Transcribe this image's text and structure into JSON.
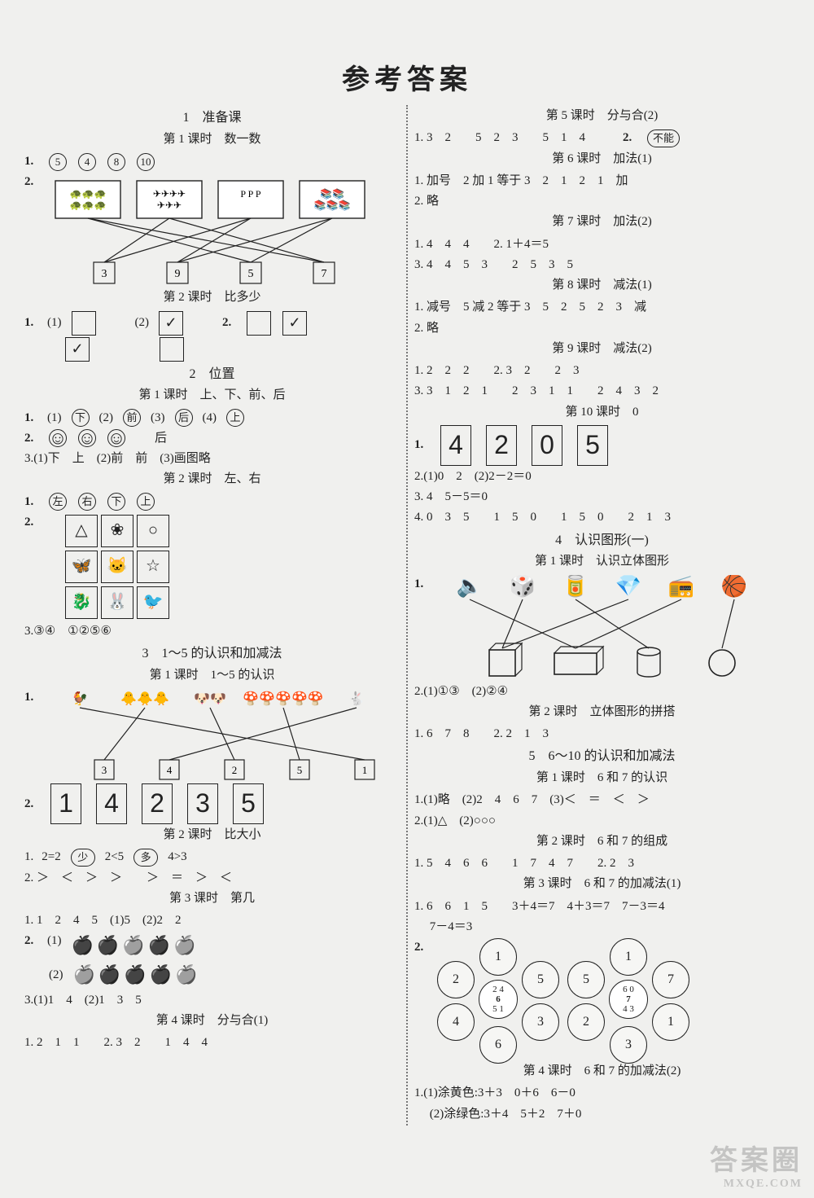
{
  "title": "参考答案",
  "left": {
    "s1": {
      "title": "1　准备课",
      "sub1": "第 1 课时　数一数"
    },
    "q1_circles": [
      "5",
      "4",
      "8",
      "10"
    ],
    "match2": {
      "top_icons": [
        "🐢🐢🐢\n🐢🐢🐢",
        "✈✈✈✈\n✈✈✈",
        "P P P",
        "📚📚\n📚📚📚"
      ],
      "bottom_boxes": [
        "3",
        "9",
        "5",
        "7"
      ],
      "edges": [
        [
          0,
          2
        ],
        [
          0,
          3
        ],
        [
          1,
          3
        ],
        [
          1,
          0
        ],
        [
          2,
          0
        ],
        [
          2,
          1
        ],
        [
          3,
          1
        ],
        [
          3,
          2
        ]
      ],
      "line_color": "#222"
    },
    "sub2": "第 2 课时　比多少",
    "q1_pairs": {
      "set1": [
        [
          "",
          ""
        ],
        [
          "✓",
          ""
        ]
      ],
      "set2": [
        [
          "✓",
          ""
        ],
        [
          "",
          ""
        ]
      ]
    },
    "q2_pair": [
      "",
      "✓"
    ],
    "s2": {
      "title": "2　位置",
      "sub1": "第 1 课时　上、下、前、后"
    },
    "pos_q1": [
      [
        "(1)",
        "下"
      ],
      [
        "(2)",
        "前"
      ],
      [
        "(3)",
        "后"
      ],
      [
        "(4)",
        "上"
      ]
    ],
    "pos_q2_faces": [
      "☺",
      "☺",
      "☺"
    ],
    "pos_q2_tail": "后",
    "pos_q3": "3.(1)下　上　(2)前　前　(3)画图略",
    "pos_sub2": "第 2 课时　左、右",
    "lr_q1": [
      "左",
      "右",
      "下",
      "上"
    ],
    "lr_grid": [
      "△",
      "❀",
      "○",
      "🦋",
      "🐱",
      "☆",
      "🐉",
      "🐰",
      "🐦"
    ],
    "lr_q3": "3.③④　①②⑤⑥",
    "s3": {
      "title": "3　1～5 的认识和加减法",
      "sub1": "第 1 课时　1～5 的认识"
    },
    "m15": {
      "top_icons": [
        "🐓",
        "🐥🐥🐥",
        "🐶🐶",
        "🍄🍄🍄🍄🍄",
        "🐇"
      ],
      "bottom_boxes": [
        "3",
        "4",
        "2",
        "5",
        "1"
      ],
      "edges": [
        [
          0,
          4
        ],
        [
          1,
          0
        ],
        [
          2,
          2
        ],
        [
          3,
          3
        ],
        [
          4,
          1
        ]
      ],
      "line_color": "#222"
    },
    "digits_q2": [
      "1",
      "4",
      "2",
      "3",
      "5"
    ],
    "s3_sub2": "第 2 课时　比大小",
    "cmp_q1": [
      "1.",
      "2=2",
      "少",
      "2<5",
      "多",
      "4>3"
    ],
    "cmp_q2": "2. ＞　＜　＞　＞　　＞　＝　＞　＜",
    "s3_sub3": "第 3 课时　第几",
    "dj_q1": "1. 1　2　4　5　(1)5　(2)2　2",
    "apples": {
      "r1": [
        "●",
        "●",
        "○",
        "●",
        "○"
      ],
      "r2": [
        "○",
        "●",
        "●",
        "●",
        "○"
      ]
    },
    "dj_q3": "3.(1)1　4　(2)1　3　5",
    "s3_sub4": "第 4 课时　分与合(1)",
    "fh_q1": "1. 2　1　1　　2. 3　2　　1　4　4"
  },
  "right": {
    "sub5": "第 5 课时　分与合(2)",
    "l5_q1": "1. 3　2　　5　2　3　　5　1　4",
    "l5_q2_label": "2.",
    "l5_q2_oval": "不能",
    "sub6": "第 6 课时　加法(1)",
    "l6_q1": "1. 加号　2 加 1 等于 3　2　1　2　1　加",
    "l6_q2": "2. 略",
    "sub7": "第 7 课时　加法(2)",
    "l7_q1": "1. 4　4　4　　2. 1＋4＝5",
    "l7_q3": "3. 4　4　5　3　　2　5　3　5",
    "sub8": "第 8 课时　减法(1)",
    "l8_q1": "1. 减号　5 减 2 等于 3　5　2　5　2　3　减",
    "l8_q2": "2. 略",
    "sub9": "第 9 课时　减法(2)",
    "l9_q1": "1. 2　2　2　　2. 3　2　　2　3",
    "l9_q3": "3. 3　1　2　1　　2　3　1　1　　2　4　3　2",
    "sub10": "第 10 课时　0",
    "l10_q1_digits": [
      "4",
      "2",
      "0",
      "5"
    ],
    "l10_q2": "2.(1)0　2　(2)2－2＝0",
    "l10_q3": "3. 4　5－5＝0",
    "l10_q4": "4. 0　3　5　　1　5　0　　1　5　0　　2　1　3",
    "s4": {
      "title": "4　认识图形(一)",
      "sub1": "第 1 课时　认识立体图形"
    },
    "solid_match": {
      "top_icons": [
        "🔈",
        "🎲",
        "🥫",
        "💎",
        "📻",
        "🏀"
      ],
      "bottom_kind": [
        "cube",
        "cuboid",
        "cyl",
        "ball"
      ],
      "edges": [
        [
          0,
          1
        ],
        [
          1,
          0
        ],
        [
          2,
          2
        ],
        [
          3,
          0
        ],
        [
          4,
          1
        ],
        [
          5,
          3
        ]
      ],
      "line_color": "#222"
    },
    "solid_q2": "2.(1)①③　(2)②④",
    "s4_sub2": "第 2 课时　立体图形的拼搭",
    "pz_q1": "1. 6　7　8　　2. 2　1　3",
    "s5": {
      "title": "5　6～10 的认识和加减法",
      "sub1": "第 1 课时　6 和 7 的认识"
    },
    "s5_q1": "1.(1)略　(2)2　4　6　7　(3)＜　＝　＜　＞",
    "s5_q2": "2.(1)△　(2)○○○",
    "s5_sub2": "第 2 课时　6 和 7 的组成",
    "s5_2_q1": "1. 5　4　6　6　　1　7　4　7　　2. 2　3",
    "s5_sub3": "第 3 课时　6 和 7 的加减法(1)",
    "s5_3_q1a": "1. 6　6　1　5　　3＋4＝7　4＋3＝7　7－3＝4",
    "s5_3_q1b": "　 7－4＝3",
    "flower6": {
      "center_top": "2 4",
      "center_mid": "6",
      "center_bot": "5 1",
      "petals": [
        "1",
        "5",
        "3",
        "6",
        "4",
        "2"
      ]
    },
    "flower7": {
      "center_top": "6 0",
      "center_mid": "7",
      "center_bot": "4 3",
      "petals": [
        "1",
        "7",
        "1",
        "3",
        "2",
        "5"
      ]
    },
    "s5_sub4": "第 4 课时　6 和 7 的加减法(2)",
    "s5_4_q1a": "1.(1)涂黄色:3＋3　0＋6　6－0",
    "s5_4_q1b": "　 (2)涂绿色:3＋4　5＋2　7＋0"
  },
  "watermark": {
    "big": "答案圈",
    "small": "MXQE.COM"
  }
}
